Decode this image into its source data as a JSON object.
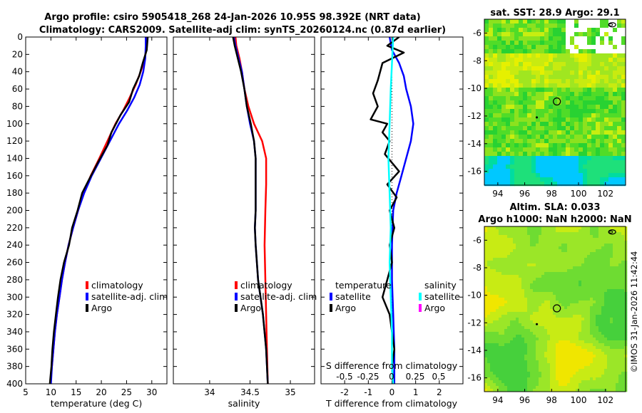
{
  "title_line1": "Argo profile: csiro 5905418_268 24-Jan-2026 10.95S 98.392E (NRT data)",
  "title_line2": "Climatology: CARS2009. Satellite-adj clim: synTS_20260124.nc (0.87d earlier)",
  "credit": "©IMOS 31-Jan-2026 11:42:44",
  "colors": {
    "climatology": "#ff0000",
    "satellite": "#0000ff",
    "argo": "#000000",
    "satellite_salinity": "#00ffff",
    "argo_salinity": "#ff00ff"
  },
  "chart_data": [
    {
      "id": "temperature",
      "type": "line",
      "xlabel": "temperature (deg C)",
      "xlim": [
        5,
        33
      ],
      "xticks": [
        5,
        10,
        15,
        20,
        25,
        30
      ],
      "ylim": [
        400,
        0
      ],
      "yticks": [
        0,
        20,
        40,
        60,
        80,
        100,
        120,
        140,
        160,
        180,
        200,
        220,
        240,
        260,
        280,
        300,
        320,
        340,
        360,
        380,
        400
      ],
      "legend": [
        "climatology",
        "satellite-adj. clim",
        "Argo"
      ],
      "series": [
        {
          "name": "climatology",
          "color": "climatology",
          "points": [
            [
              29.1,
              0
            ],
            [
              29.0,
              10
            ],
            [
              28.6,
              25
            ],
            [
              27.8,
              40
            ],
            [
              26.8,
              55
            ],
            [
              25.6,
              70
            ],
            [
              24.3,
              85
            ],
            [
              22.8,
              100
            ],
            [
              21.2,
              120
            ],
            [
              19.6,
              140
            ],
            [
              17.9,
              160
            ],
            [
              16.5,
              180
            ],
            [
              15.4,
              200
            ],
            [
              14.4,
              220
            ],
            [
              13.5,
              240
            ],
            [
              12.8,
              260
            ],
            [
              12.2,
              280
            ],
            [
              11.7,
              300
            ],
            [
              11.2,
              320
            ],
            [
              10.8,
              340
            ],
            [
              10.5,
              360
            ],
            [
              10.2,
              380
            ],
            [
              9.9,
              400
            ]
          ]
        },
        {
          "name": "satellite-adj. clim",
          "color": "satellite",
          "points": [
            [
              28.8,
              0
            ],
            [
              28.8,
              10
            ],
            [
              28.7,
              25
            ],
            [
              28.3,
              40
            ],
            [
              27.6,
              55
            ],
            [
              26.5,
              70
            ],
            [
              25.1,
              85
            ],
            [
              23.5,
              100
            ],
            [
              21.7,
              120
            ],
            [
              19.9,
              140
            ],
            [
              18.1,
              160
            ],
            [
              16.6,
              180
            ],
            [
              15.4,
              200
            ],
            [
              14.4,
              220
            ],
            [
              13.5,
              240
            ],
            [
              12.8,
              260
            ],
            [
              12.2,
              280
            ],
            [
              11.7,
              300
            ],
            [
              11.2,
              320
            ],
            [
              10.8,
              340
            ],
            [
              10.5,
              360
            ],
            [
              10.2,
              380
            ],
            [
              10.0,
              400
            ]
          ]
        },
        {
          "name": "Argo",
          "color": "argo",
          "points": [
            [
              29.2,
              0
            ],
            [
              29.0,
              15
            ],
            [
              28.2,
              30
            ],
            [
              27.5,
              45
            ],
            [
              26.3,
              60
            ],
            [
              25.5,
              75
            ],
            [
              23.8,
              90
            ],
            [
              22.0,
              110
            ],
            [
              21.2,
              125
            ],
            [
              19.3,
              145
            ],
            [
              17.5,
              165
            ],
            [
              16.2,
              180
            ],
            [
              15.3,
              200
            ],
            [
              14.2,
              220
            ],
            [
              13.6,
              240
            ],
            [
              12.6,
              260
            ],
            [
              11.9,
              280
            ],
            [
              11.4,
              300
            ],
            [
              11.0,
              320
            ],
            [
              10.6,
              340
            ],
            [
              10.3,
              360
            ],
            [
              10.1,
              380
            ],
            [
              9.8,
              400
            ]
          ]
        }
      ]
    },
    {
      "id": "salinity",
      "type": "line",
      "xlabel": "salinity",
      "xlim": [
        33.55,
        35.3
      ],
      "xticks": [
        34,
        34.5,
        35
      ],
      "ylim": [
        400,
        0
      ],
      "legend": [
        "climatology",
        "satellite-adj. clim",
        "Argo"
      ],
      "series": [
        {
          "name": "climatology",
          "color": "climatology",
          "points": [
            [
              34.32,
              0
            ],
            [
              34.33,
              10
            ],
            [
              34.37,
              25
            ],
            [
              34.4,
              40
            ],
            [
              34.43,
              60
            ],
            [
              34.48,
              80
            ],
            [
              34.55,
              100
            ],
            [
              34.65,
              120
            ],
            [
              34.7,
              140
            ],
            [
              34.7,
              170
            ],
            [
              34.69,
              200
            ],
            [
              34.68,
              240
            ],
            [
              34.69,
              280
            ],
            [
              34.7,
              320
            ],
            [
              34.71,
              360
            ],
            [
              34.72,
              400
            ]
          ]
        },
        {
          "name": "satellite-adj. clim",
          "color": "satellite",
          "points": [
            [
              34.3,
              0
            ],
            [
              34.32,
              10
            ],
            [
              34.36,
              25
            ],
            [
              34.4,
              40
            ],
            [
              34.43,
              60
            ],
            [
              34.46,
              80
            ],
            [
              34.5,
              100
            ],
            [
              34.55,
              120
            ],
            [
              34.57,
              140
            ],
            [
              34.57,
              170
            ],
            [
              34.57,
              200
            ],
            [
              34.56,
              220
            ],
            [
              34.57,
              240
            ],
            [
              34.6,
              280
            ],
            [
              34.66,
              320
            ],
            [
              34.7,
              360
            ],
            [
              34.72,
              400
            ]
          ]
        },
        {
          "name": "Argo",
          "color": "argo",
          "points": [
            [
              34.29,
              0
            ],
            [
              34.31,
              10
            ],
            [
              34.35,
              25
            ],
            [
              34.39,
              40
            ],
            [
              34.43,
              60
            ],
            [
              34.46,
              80
            ],
            [
              34.51,
              100
            ],
            [
              34.55,
              120
            ],
            [
              34.57,
              140
            ],
            [
              34.57,
              170
            ],
            [
              34.57,
              200
            ],
            [
              34.56,
              220
            ],
            [
              34.57,
              240
            ],
            [
              34.6,
              280
            ],
            [
              34.66,
              320
            ],
            [
              34.7,
              360
            ],
            [
              34.72,
              400
            ]
          ]
        }
      ]
    },
    {
      "id": "difference",
      "type": "line",
      "xlabel": "T difference from climatology",
      "xlim": [
        -3,
        3
      ],
      "xticks": [
        -2,
        -1,
        0,
        1,
        2
      ],
      "s_axis_label": "S difference from climatology",
      "s_ticks": [
        "-0.5",
        "-0.25",
        "0",
        "0.25",
        "0.5"
      ],
      "ylim": [
        400,
        0
      ],
      "legend_temperature_title": "temperature",
      "legend_salinity_title": "salinity",
      "legend_temperature": [
        "satellite",
        "Argo"
      ],
      "legend_salinity": [
        "satellite",
        "Argo"
      ],
      "series": [
        {
          "name": "temperature satellite",
          "color": "satellite",
          "points": [
            [
              -0.1,
              0
            ],
            [
              0.0,
              15
            ],
            [
              0.3,
              30
            ],
            [
              0.5,
              45
            ],
            [
              0.6,
              60
            ],
            [
              0.8,
              80
            ],
            [
              0.9,
              100
            ],
            [
              0.8,
              120
            ],
            [
              0.6,
              140
            ],
            [
              0.4,
              160
            ],
            [
              0.2,
              180
            ],
            [
              0.05,
              200
            ],
            [
              0.0,
              240
            ],
            [
              0.0,
              280
            ],
            [
              0.05,
              320
            ],
            [
              0.1,
              360
            ],
            [
              0.1,
              400
            ]
          ]
        },
        {
          "name": "temperature Argo",
          "color": "argo",
          "points": [
            [
              0.3,
              0
            ],
            [
              -0.2,
              10
            ],
            [
              0.5,
              18
            ],
            [
              -0.4,
              30
            ],
            [
              -0.6,
              50
            ],
            [
              -0.8,
              65
            ],
            [
              -0.6,
              80
            ],
            [
              -0.9,
              95
            ],
            [
              -0.2,
              100
            ],
            [
              -0.4,
              110
            ],
            [
              -0.1,
              120
            ],
            [
              -0.3,
              135
            ],
            [
              0.3,
              155
            ],
            [
              -0.2,
              170
            ],
            [
              0.2,
              185
            ],
            [
              -0.1,
              200
            ],
            [
              0.1,
              220
            ],
            [
              -0.1,
              240
            ],
            [
              0.0,
              260
            ],
            [
              -0.2,
              280
            ],
            [
              -0.4,
              300
            ],
            [
              -0.1,
              320
            ],
            [
              0.0,
              340
            ],
            [
              0.1,
              360
            ],
            [
              0.0,
              380
            ],
            [
              0.05,
              400
            ]
          ]
        },
        {
          "name": "salinity satellite",
          "color": "satellite_salinity",
          "points": [
            [
              0.05,
              0
            ],
            [
              0.0,
              30
            ],
            [
              -0.05,
              60
            ],
            [
              -0.1,
              100
            ],
            [
              -0.15,
              140
            ],
            [
              -0.1,
              180
            ],
            [
              -0.05,
              220
            ],
            [
              -0.1,
              260
            ],
            [
              -0.05,
              300
            ],
            [
              0.0,
              340
            ],
            [
              0.0,
              380
            ],
            [
              0.05,
              400
            ]
          ]
        }
      ]
    },
    {
      "id": "sst_map",
      "type": "heatmap",
      "title": "sat. SST: 28.9 Argo: 29.1",
      "xlim": [
        93,
        103.5
      ],
      "xticks": [
        94,
        96,
        98,
        100,
        102
      ],
      "ylim": [
        -17,
        -5
      ],
      "yticks": [
        -6,
        -8,
        -10,
        -12,
        -14,
        -16
      ],
      "argo_position": [
        98.392,
        -10.95
      ]
    },
    {
      "id": "sla_map",
      "type": "heatmap",
      "title_line1": "Altim. SLA: 0.033",
      "title_line2": "Argo h1000: NaN h2000: NaN",
      "xlim": [
        93,
        103.5
      ],
      "xticks": [
        94,
        96,
        98,
        100,
        102
      ],
      "ylim": [
        -17,
        -5
      ],
      "yticks": [
        -6,
        -8,
        -10,
        -12,
        -14,
        -16
      ],
      "argo_position": [
        98.392,
        -10.95
      ]
    }
  ]
}
